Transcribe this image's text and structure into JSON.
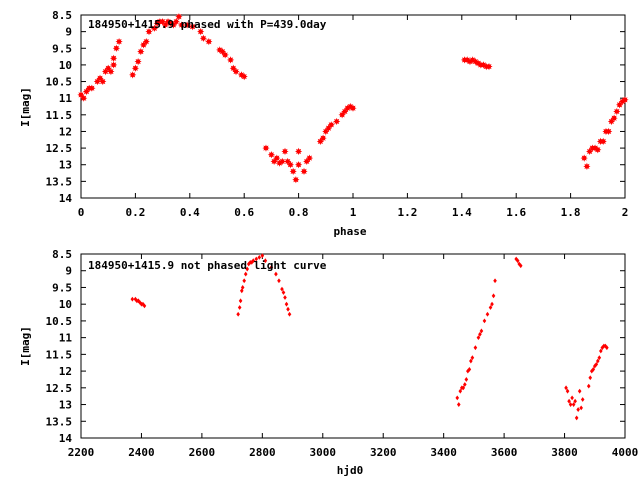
{
  "chart_data": [
    {
      "type": "scatter",
      "title": "184950+1415.9 phased with P=439.0day",
      "xlabel": "phase",
      "ylabel": "I[mag]",
      "xlim": [
        0,
        2
      ],
      "ylim": [
        8.5,
        14
      ],
      "y_inverted": true,
      "grid": false,
      "marker_color": "#ff0000",
      "marker": "star",
      "xticks": [
        "0",
        "0.2",
        "0.4",
        "0.6",
        "0.8",
        "1",
        "1.2",
        "1.4",
        "1.6",
        "1.8",
        "2"
      ],
      "yticks": [
        "8.5",
        "9",
        "9.5",
        "10",
        "10.5",
        "11",
        "11.5",
        "12",
        "12.5",
        "13",
        "13.5",
        "14"
      ],
      "points": [
        [
          0.0,
          10.9
        ],
        [
          0.01,
          11.0
        ],
        [
          0.02,
          10.8
        ],
        [
          0.03,
          10.7
        ],
        [
          0.04,
          10.7
        ],
        [
          0.06,
          10.5
        ],
        [
          0.07,
          10.4
        ],
        [
          0.08,
          10.5
        ],
        [
          0.09,
          10.2
        ],
        [
          0.1,
          10.1
        ],
        [
          0.11,
          10.2
        ],
        [
          0.12,
          10.0
        ],
        [
          0.12,
          9.8
        ],
        [
          0.13,
          9.5
        ],
        [
          0.14,
          9.3
        ],
        [
          0.19,
          10.3
        ],
        [
          0.2,
          10.1
        ],
        [
          0.21,
          9.9
        ],
        [
          0.22,
          9.6
        ],
        [
          0.23,
          9.4
        ],
        [
          0.24,
          9.3
        ],
        [
          0.25,
          9.0
        ],
        [
          0.27,
          8.9
        ],
        [
          0.28,
          8.75
        ],
        [
          0.29,
          8.7
        ],
        [
          0.3,
          8.7
        ],
        [
          0.31,
          8.8
        ],
        [
          0.32,
          8.7
        ],
        [
          0.33,
          8.75
        ],
        [
          0.34,
          8.8
        ],
        [
          0.35,
          8.7
        ],
        [
          0.36,
          8.55
        ],
        [
          0.37,
          8.8
        ],
        [
          0.39,
          8.8
        ],
        [
          0.41,
          8.85
        ],
        [
          0.44,
          9.0
        ],
        [
          0.45,
          9.2
        ],
        [
          0.47,
          9.3
        ],
        [
          0.51,
          9.55
        ],
        [
          0.52,
          9.6
        ],
        [
          0.53,
          9.7
        ],
        [
          0.55,
          9.85
        ],
        [
          0.56,
          10.1
        ],
        [
          0.57,
          10.2
        ],
        [
          0.59,
          10.3
        ],
        [
          0.6,
          10.35
        ],
        [
          0.68,
          12.5
        ],
        [
          0.7,
          12.7
        ],
        [
          0.71,
          12.9
        ],
        [
          0.72,
          12.8
        ],
        [
          0.73,
          12.95
        ],
        [
          0.74,
          12.9
        ],
        [
          0.75,
          12.6
        ],
        [
          0.76,
          12.9
        ],
        [
          0.77,
          13.0
        ],
        [
          0.78,
          13.2
        ],
        [
          0.79,
          13.45
        ],
        [
          0.8,
          12.6
        ],
        [
          0.8,
          13.0
        ],
        [
          0.82,
          13.2
        ],
        [
          0.83,
          12.9
        ],
        [
          0.84,
          12.8
        ],
        [
          0.88,
          12.3
        ],
        [
          0.89,
          12.2
        ],
        [
          0.9,
          12.0
        ],
        [
          0.91,
          11.9
        ],
        [
          0.92,
          11.8
        ],
        [
          0.94,
          11.7
        ],
        [
          0.96,
          11.5
        ],
        [
          0.97,
          11.4
        ],
        [
          0.98,
          11.3
        ],
        [
          0.99,
          11.25
        ],
        [
          1.0,
          11.3
        ],
        [
          1.41,
          9.85
        ],
        [
          1.42,
          9.85
        ],
        [
          1.43,
          9.9
        ],
        [
          1.44,
          9.85
        ],
        [
          1.45,
          9.9
        ],
        [
          1.46,
          9.95
        ],
        [
          1.47,
          10.0
        ],
        [
          1.48,
          10.0
        ],
        [
          1.49,
          10.05
        ],
        [
          1.5,
          10.05
        ],
        [
          1.85,
          12.8
        ],
        [
          1.86,
          13.05
        ],
        [
          1.87,
          12.6
        ],
        [
          1.88,
          12.5
        ],
        [
          1.89,
          12.5
        ],
        [
          1.9,
          12.55
        ],
        [
          1.91,
          12.3
        ],
        [
          1.92,
          12.3
        ],
        [
          1.93,
          12.0
        ],
        [
          1.94,
          12.0
        ],
        [
          1.95,
          11.7
        ],
        [
          1.96,
          11.6
        ],
        [
          1.97,
          11.4
        ],
        [
          1.98,
          11.2
        ],
        [
          1.99,
          11.1
        ],
        [
          2.0,
          11.05
        ]
      ]
    },
    {
      "type": "scatter",
      "title": "184950+1415.9 not phased light curve",
      "xlabel": "hjd0",
      "ylabel": "I[mag]",
      "xlim": [
        2200,
        4000
      ],
      "ylim": [
        8.5,
        14
      ],
      "y_inverted": true,
      "grid": false,
      "marker_color": "#ff0000",
      "marker": "dot",
      "xticks": [
        "2200",
        "2400",
        "2600",
        "2800",
        "3000",
        "3200",
        "3400",
        "3600",
        "3800",
        "4000"
      ],
      "yticks": [
        "8.5",
        "9",
        "9.5",
        "10",
        "10.5",
        "11",
        "11.5",
        "12",
        "12.5",
        "13",
        "13.5",
        "14"
      ],
      "points": [
        [
          2370,
          9.85
        ],
        [
          2380,
          9.85
        ],
        [
          2385,
          9.9
        ],
        [
          2390,
          9.9
        ],
        [
          2395,
          9.95
        ],
        [
          2400,
          10.0
        ],
        [
          2405,
          10.0
        ],
        [
          2410,
          10.05
        ],
        [
          2720,
          10.3
        ],
        [
          2725,
          10.1
        ],
        [
          2728,
          9.9
        ],
        [
          2732,
          9.6
        ],
        [
          2735,
          9.5
        ],
        [
          2740,
          9.3
        ],
        [
          2745,
          9.1
        ],
        [
          2750,
          8.95
        ],
        [
          2755,
          8.8
        ],
        [
          2760,
          8.75
        ],
        [
          2765,
          8.75
        ],
        [
          2770,
          8.7
        ],
        [
          2780,
          8.65
        ],
        [
          2790,
          8.6
        ],
        [
          2800,
          8.55
        ],
        [
          2810,
          8.7
        ],
        [
          2830,
          8.9
        ],
        [
          2845,
          9.1
        ],
        [
          2855,
          9.3
        ],
        [
          2865,
          9.55
        ],
        [
          2870,
          9.65
        ],
        [
          2875,
          9.8
        ],
        [
          2880,
          10.0
        ],
        [
          2885,
          10.15
        ],
        [
          2890,
          10.3
        ],
        [
          3445,
          12.8
        ],
        [
          3450,
          13.0
        ],
        [
          3455,
          12.6
        ],
        [
          3460,
          12.5
        ],
        [
          3465,
          12.5
        ],
        [
          3470,
          12.4
        ],
        [
          3475,
          12.25
        ],
        [
          3480,
          12.0
        ],
        [
          3485,
          11.95
        ],
        [
          3490,
          11.7
        ],
        [
          3495,
          11.6
        ],
        [
          3505,
          11.3
        ],
        [
          3515,
          11.0
        ],
        [
          3520,
          10.9
        ],
        [
          3525,
          10.8
        ],
        [
          3535,
          10.5
        ],
        [
          3545,
          10.3
        ],
        [
          3555,
          10.1
        ],
        [
          3560,
          10.0
        ],
        [
          3565,
          9.75
        ],
        [
          3570,
          9.3
        ],
        [
          3640,
          8.65
        ],
        [
          3645,
          8.7
        ],
        [
          3650,
          8.8
        ],
        [
          3655,
          8.85
        ],
        [
          3805,
          12.5
        ],
        [
          3810,
          12.6
        ],
        [
          3815,
          12.9
        ],
        [
          3820,
          13.0
        ],
        [
          3825,
          12.8
        ],
        [
          3830,
          13.0
        ],
        [
          3835,
          12.9
        ],
        [
          3840,
          13.4
        ],
        [
          3845,
          13.15
        ],
        [
          3850,
          12.6
        ],
        [
          3855,
          13.1
        ],
        [
          3860,
          12.85
        ],
        [
          3880,
          12.45
        ],
        [
          3885,
          12.2
        ],
        [
          3890,
          12.0
        ],
        [
          3895,
          11.95
        ],
        [
          3900,
          11.85
        ],
        [
          3905,
          11.8
        ],
        [
          3910,
          11.7
        ],
        [
          3915,
          11.6
        ],
        [
          3920,
          11.4
        ],
        [
          3925,
          11.3
        ],
        [
          3930,
          11.25
        ],
        [
          3935,
          11.25
        ],
        [
          3940,
          11.3
        ]
      ]
    }
  ]
}
